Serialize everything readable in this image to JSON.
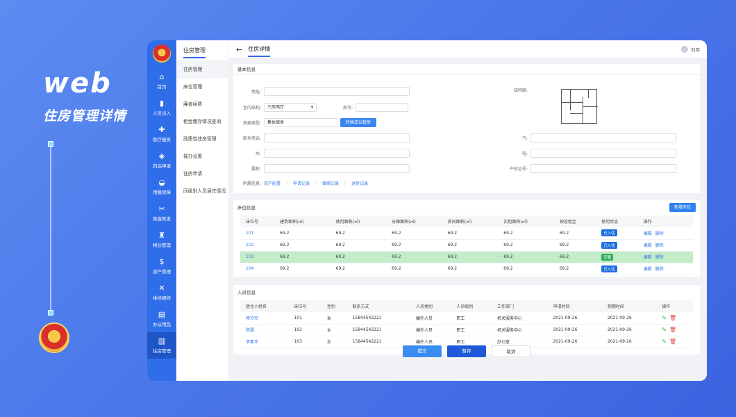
{
  "hero": {
    "web": "web",
    "subtitle": "住房管理详情"
  },
  "rail": [
    {
      "icon": "⌂",
      "label": "首页"
    },
    {
      "icon": "▮",
      "label": "人员出入"
    },
    {
      "icon": "✚",
      "label": "医疗服务"
    },
    {
      "icon": "◈",
      "label": "药品申请"
    },
    {
      "icon": "◒",
      "label": "用餐保障"
    },
    {
      "icon": "✂",
      "label": "美容美发"
    },
    {
      "icon": "♜",
      "label": "物业管理"
    },
    {
      "icon": "$",
      "label": "资产管理"
    },
    {
      "icon": "✕",
      "label": "维修报修"
    },
    {
      "icon": "▤",
      "label": "办公用品"
    },
    {
      "icon": "▥",
      "label": "住房管理"
    }
  ],
  "subnav": {
    "title": "住房管理",
    "items": [
      "住房管理",
      "床位管理",
      "廉善续费",
      "租金缴存情况查询",
      "政策性住房管理",
      "催办设置",
      "住房申请",
      "同级别人员居住情况"
    ]
  },
  "topbar": {
    "back": "←",
    "title": "住房详情",
    "user": "刘晖"
  },
  "basic": {
    "title": "基本信息",
    "address_label": "地址:",
    "address_value": "",
    "structure_label": "室内结构:",
    "structure_value": "三房两厅",
    "room_label": "房号:",
    "room_value": "",
    "type_label": "房屋类型:",
    "type_value": "集体宿舍",
    "convert_button": "转换成公租房",
    "floorplan_label": "结构图:",
    "contact_label": "联系电话:",
    "gas_label": "气:",
    "water_label": "水:",
    "power_label": "电:",
    "owner_label": "属权:",
    "cert_label": "产权证号:",
    "extra_label": "附属信息:",
    "links": [
      "资产配置",
      "申请记录",
      "维修记录",
      "退房记录"
    ]
  },
  "beds": {
    "title": "床位信息",
    "add_button": "新增床位",
    "columns": [
      "床位号",
      "建筑面积(㎡)",
      "使用面积(㎡)",
      "分摊面积(㎡)",
      "房间面积(㎡)",
      "实租面积(㎡)",
      "预设租金",
      "使用状态",
      "操作"
    ],
    "rows": [
      {
        "no": "101",
        "build": "69.2",
        "use": "69.2",
        "share": "69.2",
        "room": "69.2",
        "rent_area": "69.2",
        "rent": "69.2",
        "status": "已入住",
        "edit": "编辑",
        "del": "删除"
      },
      {
        "no": "102",
        "build": "69.2",
        "use": "69.2",
        "share": "69.2",
        "room": "69.2",
        "rent_area": "69.2",
        "rent": "69.2",
        "status": "已入住",
        "edit": "编辑",
        "del": "删除"
      },
      {
        "no": "103",
        "build": "69.2",
        "use": "69.2",
        "share": "69.2",
        "room": "69.2",
        "rent_area": "69.2",
        "rent": "69.2",
        "status": "空置",
        "edit": "编辑",
        "del": "删除"
      },
      {
        "no": "104",
        "build": "69.2",
        "use": "69.2",
        "share": "69.2",
        "room": "69.2",
        "rent_area": "69.2",
        "rent": "69.2",
        "status": "已入住",
        "edit": "编辑",
        "del": "删除"
      }
    ],
    "colors": {
      "occupied": "#1f6fe0",
      "vacant": "#2fae5a",
      "highlight": "#c3ecc9"
    }
  },
  "people": {
    "title": "人员信息",
    "columns": [
      "居住人姓名",
      "床位号",
      "性别",
      "联系方式",
      "人员类别",
      "人员级别",
      "工作部门",
      "申请时间",
      "到期时间",
      "操作"
    ],
    "rows": [
      {
        "name": "蒋玲玲",
        "bed": "101",
        "sex": "女",
        "phone": "15844542221",
        "category": "编外人员",
        "level": "职工",
        "dept": "机关服务中心",
        "apply": "2021-09-26",
        "expire": "2021-09-26"
      },
      {
        "name": "陈晨",
        "bed": "102",
        "sex": "女",
        "phone": "15844542221",
        "category": "编外人员",
        "level": "职工",
        "dept": "机关服务中心",
        "apply": "2021-09-26",
        "expire": "2021-09-26"
      },
      {
        "name": "李素华",
        "bed": "103",
        "sex": "女",
        "phone": "15844542221",
        "category": "编外人员",
        "level": "职工",
        "dept": "办公室",
        "apply": "2021-09-26",
        "expire": "2021-09-26"
      }
    ]
  },
  "footer": {
    "submit": "提交",
    "save": "暂存",
    "cancel": "取消"
  }
}
